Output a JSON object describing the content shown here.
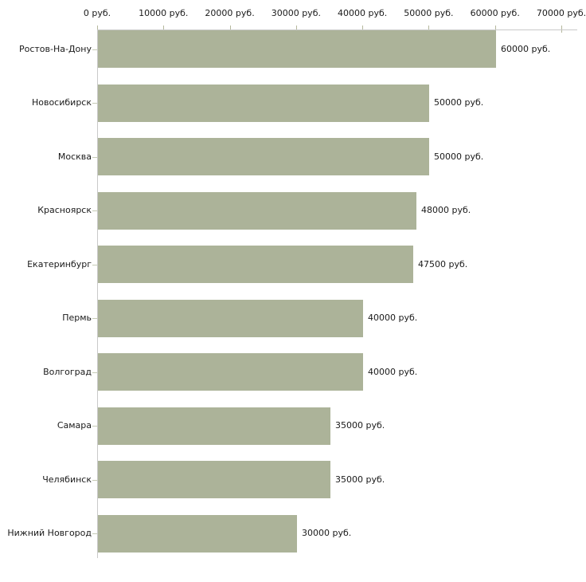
{
  "chart_data": {
    "type": "bar",
    "orientation": "horizontal",
    "title": "",
    "categories": [
      "Ростов-На-Дону",
      "Новосибирск",
      "Москва",
      "Красноярск",
      "Екатеринбург",
      "Пермь",
      "Волгоград",
      "Самара",
      "Челябинск",
      "Нижний Новгород"
    ],
    "values": [
      60000,
      50000,
      50000,
      48000,
      47500,
      40000,
      40000,
      35000,
      35000,
      30000
    ],
    "value_labels": [
      "60000 руб.",
      "50000 руб.",
      "50000 руб.",
      "48000 руб.",
      "47500 руб.",
      "40000 руб.",
      "40000 руб.",
      "35000 руб.",
      "35000 руб.",
      "30000 руб."
    ],
    "x_ticks": [
      0,
      10000,
      20000,
      30000,
      40000,
      50000,
      60000,
      70000
    ],
    "x_tick_labels": [
      "0 руб.",
      "10000 руб.",
      "20000 руб.",
      "30000 руб.",
      "40000 руб.",
      "50000 руб.",
      "60000 руб.",
      "70000 руб."
    ],
    "xlim": [
      0,
      70000
    ],
    "xlabel": "",
    "ylabel": "",
    "grid": false,
    "legend": false,
    "axis_position": "top",
    "bar_color": "#acb399",
    "axis_line_color": "#c9c9c9",
    "x_tick_color": "#b5b89d",
    "y_tick_color": "#c6cbb6",
    "text_color": "#1a1a1a",
    "background_color": "#ffffff"
  }
}
